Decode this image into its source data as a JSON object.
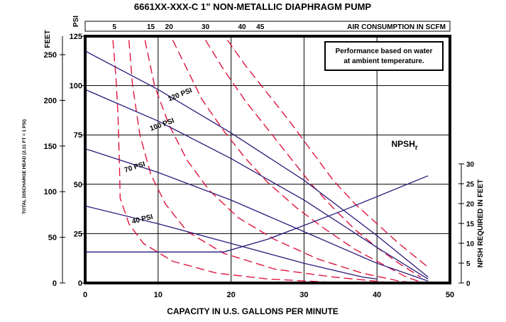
{
  "chart_data": {
    "type": "line",
    "title": "6661XX-XXX-C   1” NON-METALLIC DIAPHRAGM PUMP",
    "xlabel": "CAPACITY IN U.S. GALLONS PER MINUTE",
    "xlim": [
      0,
      50
    ],
    "x_ticks": [
      0,
      10,
      20,
      30,
      40,
      50
    ],
    "left_axis_psi": {
      "label": "PSI",
      "ticks": [
        0,
        25,
        50,
        75,
        100,
        125
      ],
      "ylim": [
        0,
        125
      ]
    },
    "left_axis_feet": {
      "label": "FEET",
      "ticks": [
        0,
        50,
        100,
        150,
        200,
        250
      ]
    },
    "left_axis_note": "TOTAL DISCHARGE HEAD (2.31 FT = 1 PSI)",
    "right_axis": {
      "label": "NPSH REQUIRED IN FEET",
      "ticks": [
        0,
        5,
        10,
        15,
        20,
        25,
        30
      ],
      "ylim": [
        0,
        30
      ]
    },
    "top_axis": {
      "label": "AIR CONSUMPTION IN SCFM",
      "ticks": [
        5,
        15,
        20,
        30,
        40,
        45
      ]
    },
    "note": "Performance based on water at ambient temperature.",
    "note_lines": [
      "Performance based on water",
      "at ambient temperature."
    ],
    "grid": true,
    "colors": {
      "head_curves": "#2b1a7a",
      "air_curves": "#e0143c",
      "border": "#000000"
    },
    "pressure_curves": [
      {
        "name": "120 PSI",
        "label": "120 PSI",
        "points": [
          [
            0,
            117.5
          ],
          [
            10,
            98
          ],
          [
            20,
            76
          ],
          [
            30,
            52
          ],
          [
            40,
            24
          ],
          [
            47,
            3
          ]
        ]
      },
      {
        "name": "100 PSI",
        "label": "100 PSI",
        "points": [
          [
            0,
            98
          ],
          [
            10,
            82
          ],
          [
            20,
            63
          ],
          [
            30,
            42
          ],
          [
            40,
            18
          ],
          [
            47,
            2
          ]
        ]
      },
      {
        "name": "70 PSI",
        "label": "70 PSI",
        "points": [
          [
            0,
            68
          ],
          [
            10,
            56
          ],
          [
            20,
            42
          ],
          [
            30,
            26
          ],
          [
            40,
            10
          ],
          [
            47,
            1
          ]
        ]
      },
      {
        "name": "40 PSI",
        "label": "40 PSI",
        "points": [
          [
            0,
            39
          ],
          [
            10,
            30
          ],
          [
            20,
            20
          ],
          [
            30,
            10
          ],
          [
            38,
            3
          ],
          [
            40,
            2
          ]
        ]
      }
    ],
    "npsh_curve": {
      "name": "NPSH",
      "label_main": "NPSH",
      "label_sub": "r",
      "axis": "right",
      "points": [
        [
          0,
          7.8
        ],
        [
          19,
          7.8
        ],
        [
          25,
          11
        ],
        [
          35,
          18
        ],
        [
          47,
          27
        ]
      ]
    },
    "air_curves": [
      {
        "name": "5",
        "points": [
          [
            3.8,
            123
          ],
          [
            4.2,
            105
          ],
          [
            4.5,
            85
          ],
          [
            4.7,
            60
          ],
          [
            4.8,
            43
          ],
          [
            6,
            30
          ],
          [
            8,
            20
          ],
          [
            12,
            11
          ],
          [
            18,
            5
          ],
          [
            25,
            2
          ],
          [
            33,
            0.5
          ]
        ]
      },
      {
        "name": "15",
        "points": [
          [
            6,
            123
          ],
          [
            6.5,
            100
          ],
          [
            7.5,
            75
          ],
          [
            9,
            55
          ],
          [
            11,
            40
          ],
          [
            14,
            26
          ],
          [
            19,
            15
          ],
          [
            26,
            7
          ],
          [
            34,
            3
          ],
          [
            41,
            0.5
          ]
        ]
      },
      {
        "name": "20",
        "points": [
          [
            8.2,
            123
          ],
          [
            9.5,
            100
          ],
          [
            11.5,
            80
          ],
          [
            14,
            62
          ],
          [
            17,
            47
          ],
          [
            21,
            33
          ],
          [
            26,
            22
          ],
          [
            32,
            12
          ],
          [
            38,
            5
          ],
          [
            43,
            1
          ],
          [
            45.5,
            0
          ]
        ]
      },
      {
        "name": "30",
        "points": [
          [
            12,
            123
          ],
          [
            14,
            108
          ],
          [
            16,
            93
          ],
          [
            19,
            77
          ],
          [
            22,
            63
          ],
          [
            25,
            51
          ],
          [
            29,
            38
          ],
          [
            33,
            27
          ],
          [
            37,
            17
          ],
          [
            41,
            9
          ],
          [
            44,
            3
          ],
          [
            46,
            0.5
          ]
        ]
      },
      {
        "name": "40",
        "points": [
          [
            16.5,
            123
          ],
          [
            19,
            108
          ],
          [
            22,
            92
          ],
          [
            25,
            78
          ],
          [
            28,
            64
          ],
          [
            31,
            50
          ],
          [
            34,
            38
          ],
          [
            37,
            27
          ],
          [
            40,
            18
          ],
          [
            43,
            10
          ],
          [
            46,
            3
          ]
        ]
      },
      {
        "name": "45",
        "points": [
          [
            19.5,
            123
          ],
          [
            22,
            110
          ],
          [
            25,
            96
          ],
          [
            28,
            82
          ],
          [
            31,
            67
          ],
          [
            34,
            52
          ],
          [
            37,
            40
          ],
          [
            40,
            30
          ],
          [
            43,
            20
          ],
          [
            46,
            11
          ],
          [
            47,
            8
          ]
        ]
      }
    ]
  }
}
